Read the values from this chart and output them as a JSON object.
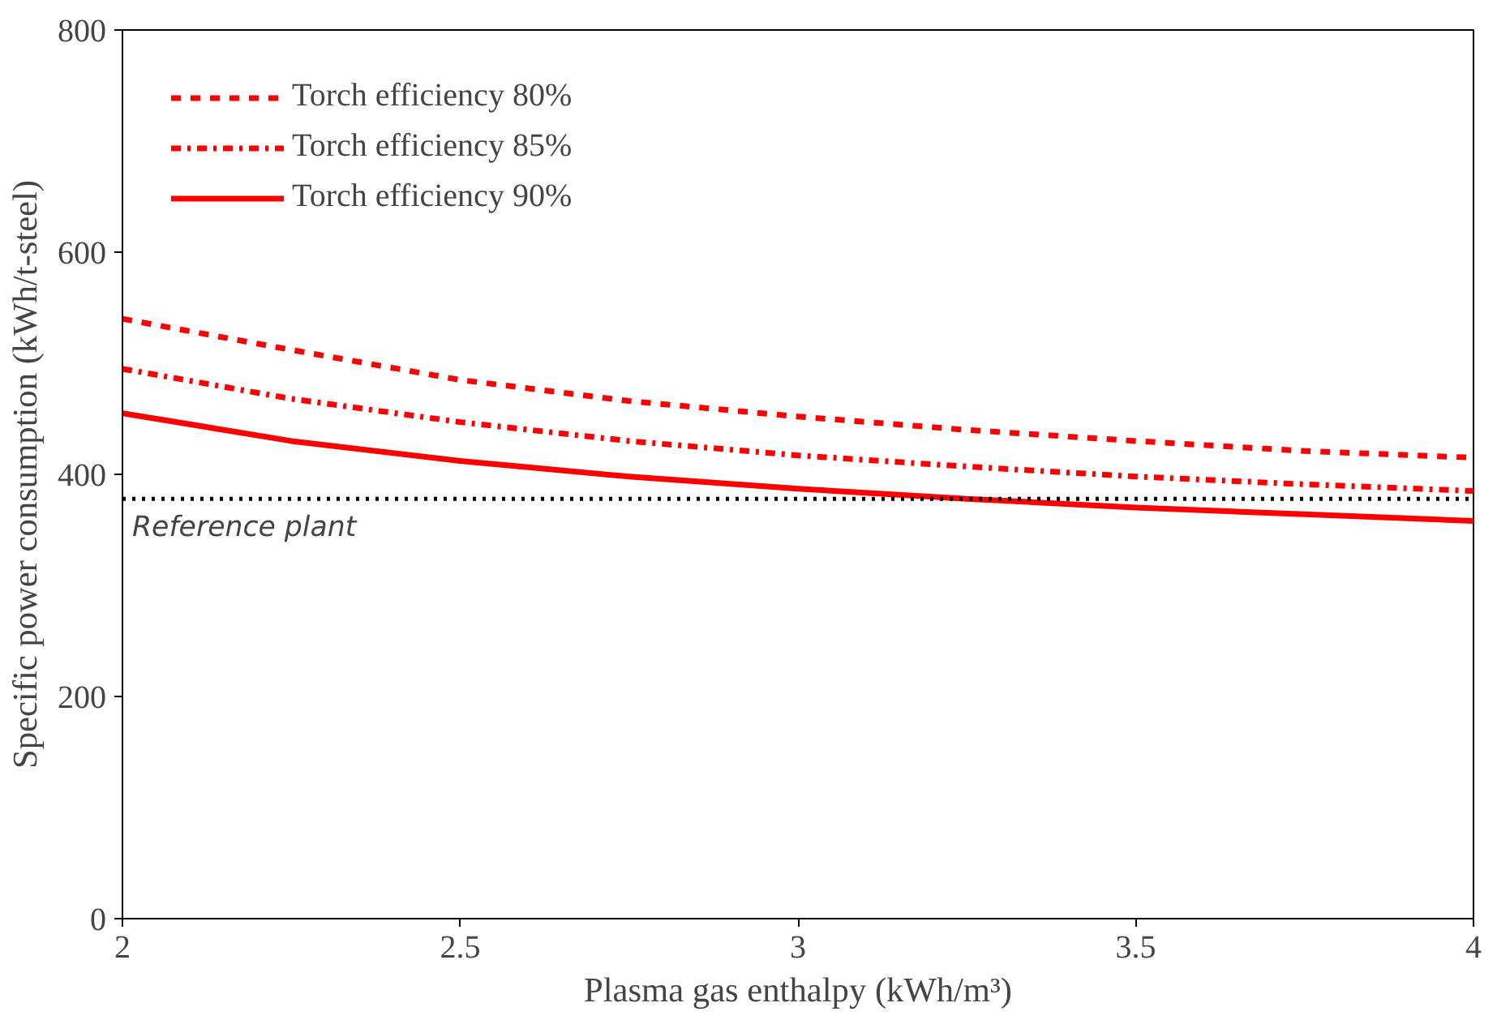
{
  "chart_data": {
    "type": "line",
    "xlabel": "Plasma gas enthalpy (kWh/m³)",
    "ylabel": "Specific power consumption (kWh/t-steel)",
    "x": [
      2,
      2.25,
      2.5,
      2.75,
      3,
      3.25,
      3.5,
      3.75,
      4
    ],
    "series": [
      {
        "name": "Torch efficiency 80%",
        "color": "#ff0000",
        "line_style": "dashed",
        "values": [
          540,
          512,
          485,
          466,
          452,
          440,
          430,
          421,
          415
        ]
      },
      {
        "name": "Torch efficiency 85%",
        "color": "#ff0000",
        "line_style": "dashdot",
        "values": [
          495,
          468,
          447,
          430,
          417,
          407,
          398,
          391,
          385
        ]
      },
      {
        "name": "Torch efficiency 90%",
        "color": "#ff0000",
        "line_style": "solid",
        "values": [
          455,
          430,
          412,
          398,
          387,
          378,
          370,
          364,
          358
        ]
      }
    ],
    "ref_lines": [
      {
        "axis": "y",
        "value": 378,
        "label": "Reference plant",
        "color": "#000000",
        "line_style": "dotted"
      }
    ],
    "xlim": [
      2,
      4
    ],
    "xticks": [
      2,
      2.5,
      3,
      3.5,
      4
    ],
    "ylim": [
      0,
      800
    ],
    "yticks": [
      0,
      200,
      400,
      600,
      800
    ],
    "grid": false,
    "legend": "top left",
    "marker": "none"
  }
}
